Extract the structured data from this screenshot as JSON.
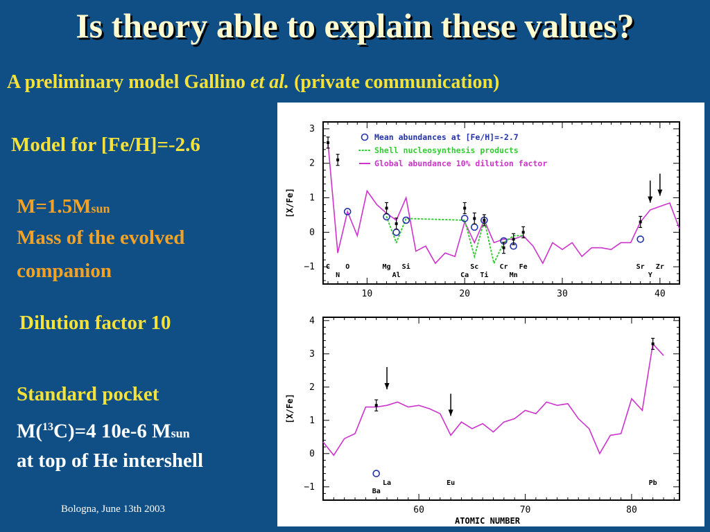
{
  "slide": {
    "title": "Is theory able to explain these values?",
    "subtitle_a": "A preliminary model Gallino",
    "subtitle_etal": "et al.",
    "subtitle_b": "(private communication)",
    "model_label": "Model for [Fe/H]=-2.6",
    "mass_main": "M=1.5M",
    "mass_sub": "sun",
    "mass_desc1": "Mass of the evolved",
    "mass_desc2": "companion",
    "dilution": "Dilution factor 10",
    "pocket1": "Standard pocket",
    "pocket2_a": "M(",
    "pocket2_sup": "13",
    "pocket2_b": "C)=4 10e-6 M",
    "pocket2_sub": "sun",
    "pocket3": "at top of He intershell",
    "footer": "Bologna, June 13th 2003"
  },
  "colors": {
    "background": "#0f4f86",
    "title": "#fffbd0",
    "yellow_text": "#f4e13a",
    "orange_text": "#f2a226",
    "model_line": "#cc33cc",
    "shell_dots": "#33cc33",
    "observed": "#2233aa"
  },
  "chart_data": [
    {
      "type": "line",
      "xlim": [
        5.5,
        42
      ],
      "ylim": [
        -1.5,
        3.2
      ],
      "xticks": [
        10,
        20,
        30,
        40
      ],
      "yticks": [
        -1,
        0,
        1,
        2,
        3
      ],
      "ylabel": "[X/Fe]",
      "xlabel": "",
      "legend_position": "top-right",
      "legend": [
        {
          "symbol": "circle",
          "label": "Mean abundances at [Fe/H]=-2.7"
        },
        {
          "symbol": "dots",
          "label": "Shell nucleosynthesis products"
        },
        {
          "symbol": "line",
          "label": "Global abundance 10% dilution factor"
        }
      ],
      "series": [
        {
          "name": "Global abundance 10% dilution factor",
          "style": "line",
          "x": [
            6,
            7,
            8,
            9,
            10,
            11,
            12,
            13,
            14,
            15,
            16,
            17,
            18,
            19,
            20,
            21,
            22,
            23,
            24,
            25,
            26,
            27,
            28,
            29,
            30,
            31,
            32,
            33,
            34,
            35,
            36,
            37,
            38,
            39,
            40,
            41,
            42
          ],
          "y": [
            2.6,
            -0.6,
            0.6,
            -0.1,
            1.2,
            0.8,
            0.55,
            0.35,
            1,
            -0.55,
            -0.4,
            -0.9,
            -0.6,
            -0.7,
            0.3,
            -0.3,
            0.35,
            -0.3,
            -0.2,
            -0.2,
            -0.1,
            -0.4,
            -0.9,
            -0.3,
            -0.5,
            -0.3,
            -0.7,
            -0.45,
            -0.45,
            -0.5,
            -0.3,
            -0.3,
            0.3,
            0.65,
            0.75,
            0.85,
            0.1
          ]
        },
        {
          "name": "Shell nucleosynthesis products",
          "style": "dots",
          "x": [
            12,
            13,
            14,
            20,
            21,
            22,
            23,
            24,
            25,
            26
          ],
          "y": [
            0.45,
            -0.3,
            0.4,
            0.35,
            -0.7,
            0.35,
            -0.9,
            -0.3,
            -0.1,
            -0.1
          ]
        }
      ],
      "observed": [
        {
          "x": 8,
          "y": 0.6,
          "symbol": "circle"
        },
        {
          "x": 12,
          "y": 0.45,
          "symbol": "circle"
        },
        {
          "x": 13,
          "y": 0.0,
          "symbol": "circle"
        },
        {
          "x": 14,
          "y": 0.35,
          "symbol": "circle"
        },
        {
          "x": 20,
          "y": 0.4,
          "symbol": "circle"
        },
        {
          "x": 21,
          "y": 0.15,
          "symbol": "circle"
        },
        {
          "x": 22,
          "y": 0.35,
          "symbol": "circle"
        },
        {
          "x": 24,
          "y": -0.25,
          "symbol": "circle"
        },
        {
          "x": 25,
          "y": -0.4,
          "symbol": "circle"
        },
        {
          "x": 38,
          "y": -0.2,
          "symbol": "circle"
        },
        {
          "x": 6,
          "y": 2.6,
          "symbol": "errorbar"
        },
        {
          "x": 7,
          "y": 2.1,
          "symbol": "errorbar"
        },
        {
          "x": 12,
          "y": 0.7,
          "symbol": "errorbar"
        },
        {
          "x": 13,
          "y": 0.25,
          "symbol": "errorbar"
        },
        {
          "x": 20,
          "y": 0.7,
          "symbol": "errorbar"
        },
        {
          "x": 21,
          "y": 0.4,
          "symbol": "errorbar"
        },
        {
          "x": 22,
          "y": 0.35,
          "symbol": "errorbar"
        },
        {
          "x": 24,
          "y": -0.45,
          "symbol": "errorbar"
        },
        {
          "x": 25,
          "y": -0.2,
          "symbol": "errorbar"
        },
        {
          "x": 26,
          "y": 0.0,
          "symbol": "errorbar"
        },
        {
          "x": 38,
          "y": 0.3,
          "symbol": "errorbar"
        }
      ],
      "element_labels": [
        {
          "x": 6,
          "row": "top",
          "text": "C"
        },
        {
          "x": 7,
          "row": "low",
          "text": "N"
        },
        {
          "x": 8,
          "row": "top",
          "text": "O"
        },
        {
          "x": 12,
          "row": "top",
          "text": "Mg"
        },
        {
          "x": 13,
          "row": "low",
          "text": "Al"
        },
        {
          "x": 14,
          "row": "top",
          "text": "Si"
        },
        {
          "x": 20,
          "row": "low",
          "text": "Ca"
        },
        {
          "x": 21,
          "row": "top",
          "text": "Sc"
        },
        {
          "x": 22,
          "row": "low",
          "text": "Ti"
        },
        {
          "x": 24,
          "row": "top",
          "text": "Cr"
        },
        {
          "x": 25,
          "row": "low",
          "text": "Mn"
        },
        {
          "x": 26,
          "row": "top",
          "text": "Fe"
        },
        {
          "x": 38,
          "row": "top",
          "text": "Sr"
        },
        {
          "x": 39,
          "row": "low",
          "text": "Y"
        },
        {
          "x": 40,
          "row": "top",
          "text": "Zr"
        }
      ],
      "arrows": [
        {
          "x": 39,
          "y": 1.5
        },
        {
          "x": 40,
          "y": 1.7
        }
      ]
    },
    {
      "type": "line",
      "xlim": [
        51,
        84.5
      ],
      "ylim": [
        -1.4,
        4.1
      ],
      "xticks": [
        60,
        70,
        80
      ],
      "yticks": [
        -1,
        0,
        1,
        2,
        3,
        4
      ],
      "ylabel": "[X/Fe]",
      "xlabel": "ATOMIC NUMBER",
      "series": [
        {
          "name": "Global abundance 10% dilution factor",
          "style": "line",
          "x": [
            51,
            52,
            53,
            54,
            55,
            56,
            57,
            58,
            59,
            60,
            61,
            62,
            63,
            64,
            65,
            66,
            67,
            68,
            69,
            70,
            71,
            72,
            73,
            74,
            75,
            76,
            77,
            78,
            79,
            80,
            81,
            82,
            83
          ],
          "y": [
            0.35,
            -0.05,
            0.45,
            0.6,
            1.4,
            1.4,
            1.45,
            1.55,
            1.4,
            1.45,
            1.35,
            1.2,
            0.55,
            0.95,
            0.75,
            0.9,
            0.65,
            0.95,
            1.05,
            1.3,
            1.2,
            1.55,
            1.45,
            1.5,
            1.05,
            0.75,
            0.0,
            0.55,
            0.6,
            1.65,
            1.3,
            3.3,
            2.95
          ]
        }
      ],
      "observed": [
        {
          "x": 56,
          "y": -0.6,
          "symbol": "circle"
        },
        {
          "x": 56,
          "y": 1.45,
          "symbol": "errorbar"
        },
        {
          "x": 82,
          "y": 3.3,
          "symbol": "errorbar"
        }
      ],
      "element_labels": [
        {
          "x": 56,
          "row": "low",
          "text": "Ba"
        },
        {
          "x": 57,
          "row": "top",
          "text": "La"
        },
        {
          "x": 63,
          "row": "top",
          "text": "Eu"
        },
        {
          "x": 82,
          "row": "top",
          "text": "Pb"
        }
      ],
      "arrows": [
        {
          "x": 57,
          "y": 2.6
        },
        {
          "x": 63,
          "y": 1.8
        }
      ]
    }
  ]
}
